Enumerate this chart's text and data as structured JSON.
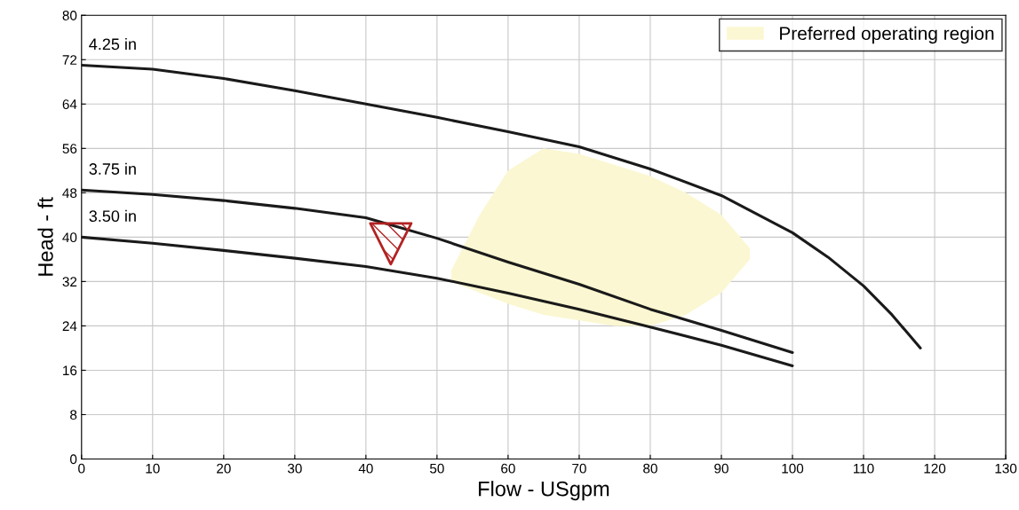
{
  "chart_data": {
    "type": "line",
    "xlabel": "Flow - USgpm",
    "ylabel": "Head - ft",
    "xlim": [
      0,
      130
    ],
    "ylim": [
      0,
      80
    ],
    "xticks": [
      0,
      10,
      20,
      30,
      40,
      50,
      60,
      70,
      80,
      90,
      100,
      110,
      120,
      130
    ],
    "yticks": [
      0,
      8,
      16,
      24,
      32,
      40,
      48,
      56,
      64,
      72,
      80
    ],
    "grid": true,
    "legend": "top right",
    "series": [
      {
        "type": "area",
        "name": "Preferred operating region",
        "color": "#fbf7d2",
        "x": [
          52,
          56,
          60,
          65,
          70,
          75,
          80,
          85,
          90,
          94,
          94,
          90,
          85,
          80,
          75,
          70,
          65,
          60,
          56,
          52
        ],
        "values": [
          34,
          44,
          52,
          56,
          55,
          53,
          51,
          48,
          44,
          38,
          36,
          30,
          26,
          24,
          24,
          25,
          26,
          28,
          30,
          32
        ]
      },
      {
        "name": "4.25 in",
        "color": "#1a1a1a",
        "x": [
          0,
          10,
          20,
          30,
          40,
          50,
          60,
          70,
          80,
          90,
          100,
          105,
          110,
          114,
          118
        ],
        "values": [
          71,
          70.3,
          68.6,
          66.4,
          64,
          61.6,
          59,
          56.3,
          52.3,
          47.5,
          40.8,
          36.4,
          31.2,
          26,
          20
        ]
      },
      {
        "name": "3.75 in",
        "color": "#1a1a1a",
        "x": [
          0,
          10,
          20,
          30,
          40,
          50,
          60,
          70,
          80,
          90,
          100
        ],
        "values": [
          48.5,
          47.7,
          46.6,
          45.2,
          43.5,
          39.8,
          35.5,
          31.5,
          27,
          23.2,
          19.2
        ]
      },
      {
        "name": "3.50 in",
        "color": "#1a1a1a",
        "x": [
          0,
          10,
          20,
          30,
          40,
          50,
          60,
          70,
          80,
          90,
          100
        ],
        "values": [
          40,
          38.9,
          37.6,
          36.2,
          34.7,
          32.6,
          29.9,
          27,
          23.8,
          20.5,
          16.8
        ]
      },
      {
        "type": "scatter",
        "color": "#b22222",
        "marker": "triangle",
        "x": [
          43.5
        ],
        "values": [
          38.8
        ]
      }
    ]
  }
}
